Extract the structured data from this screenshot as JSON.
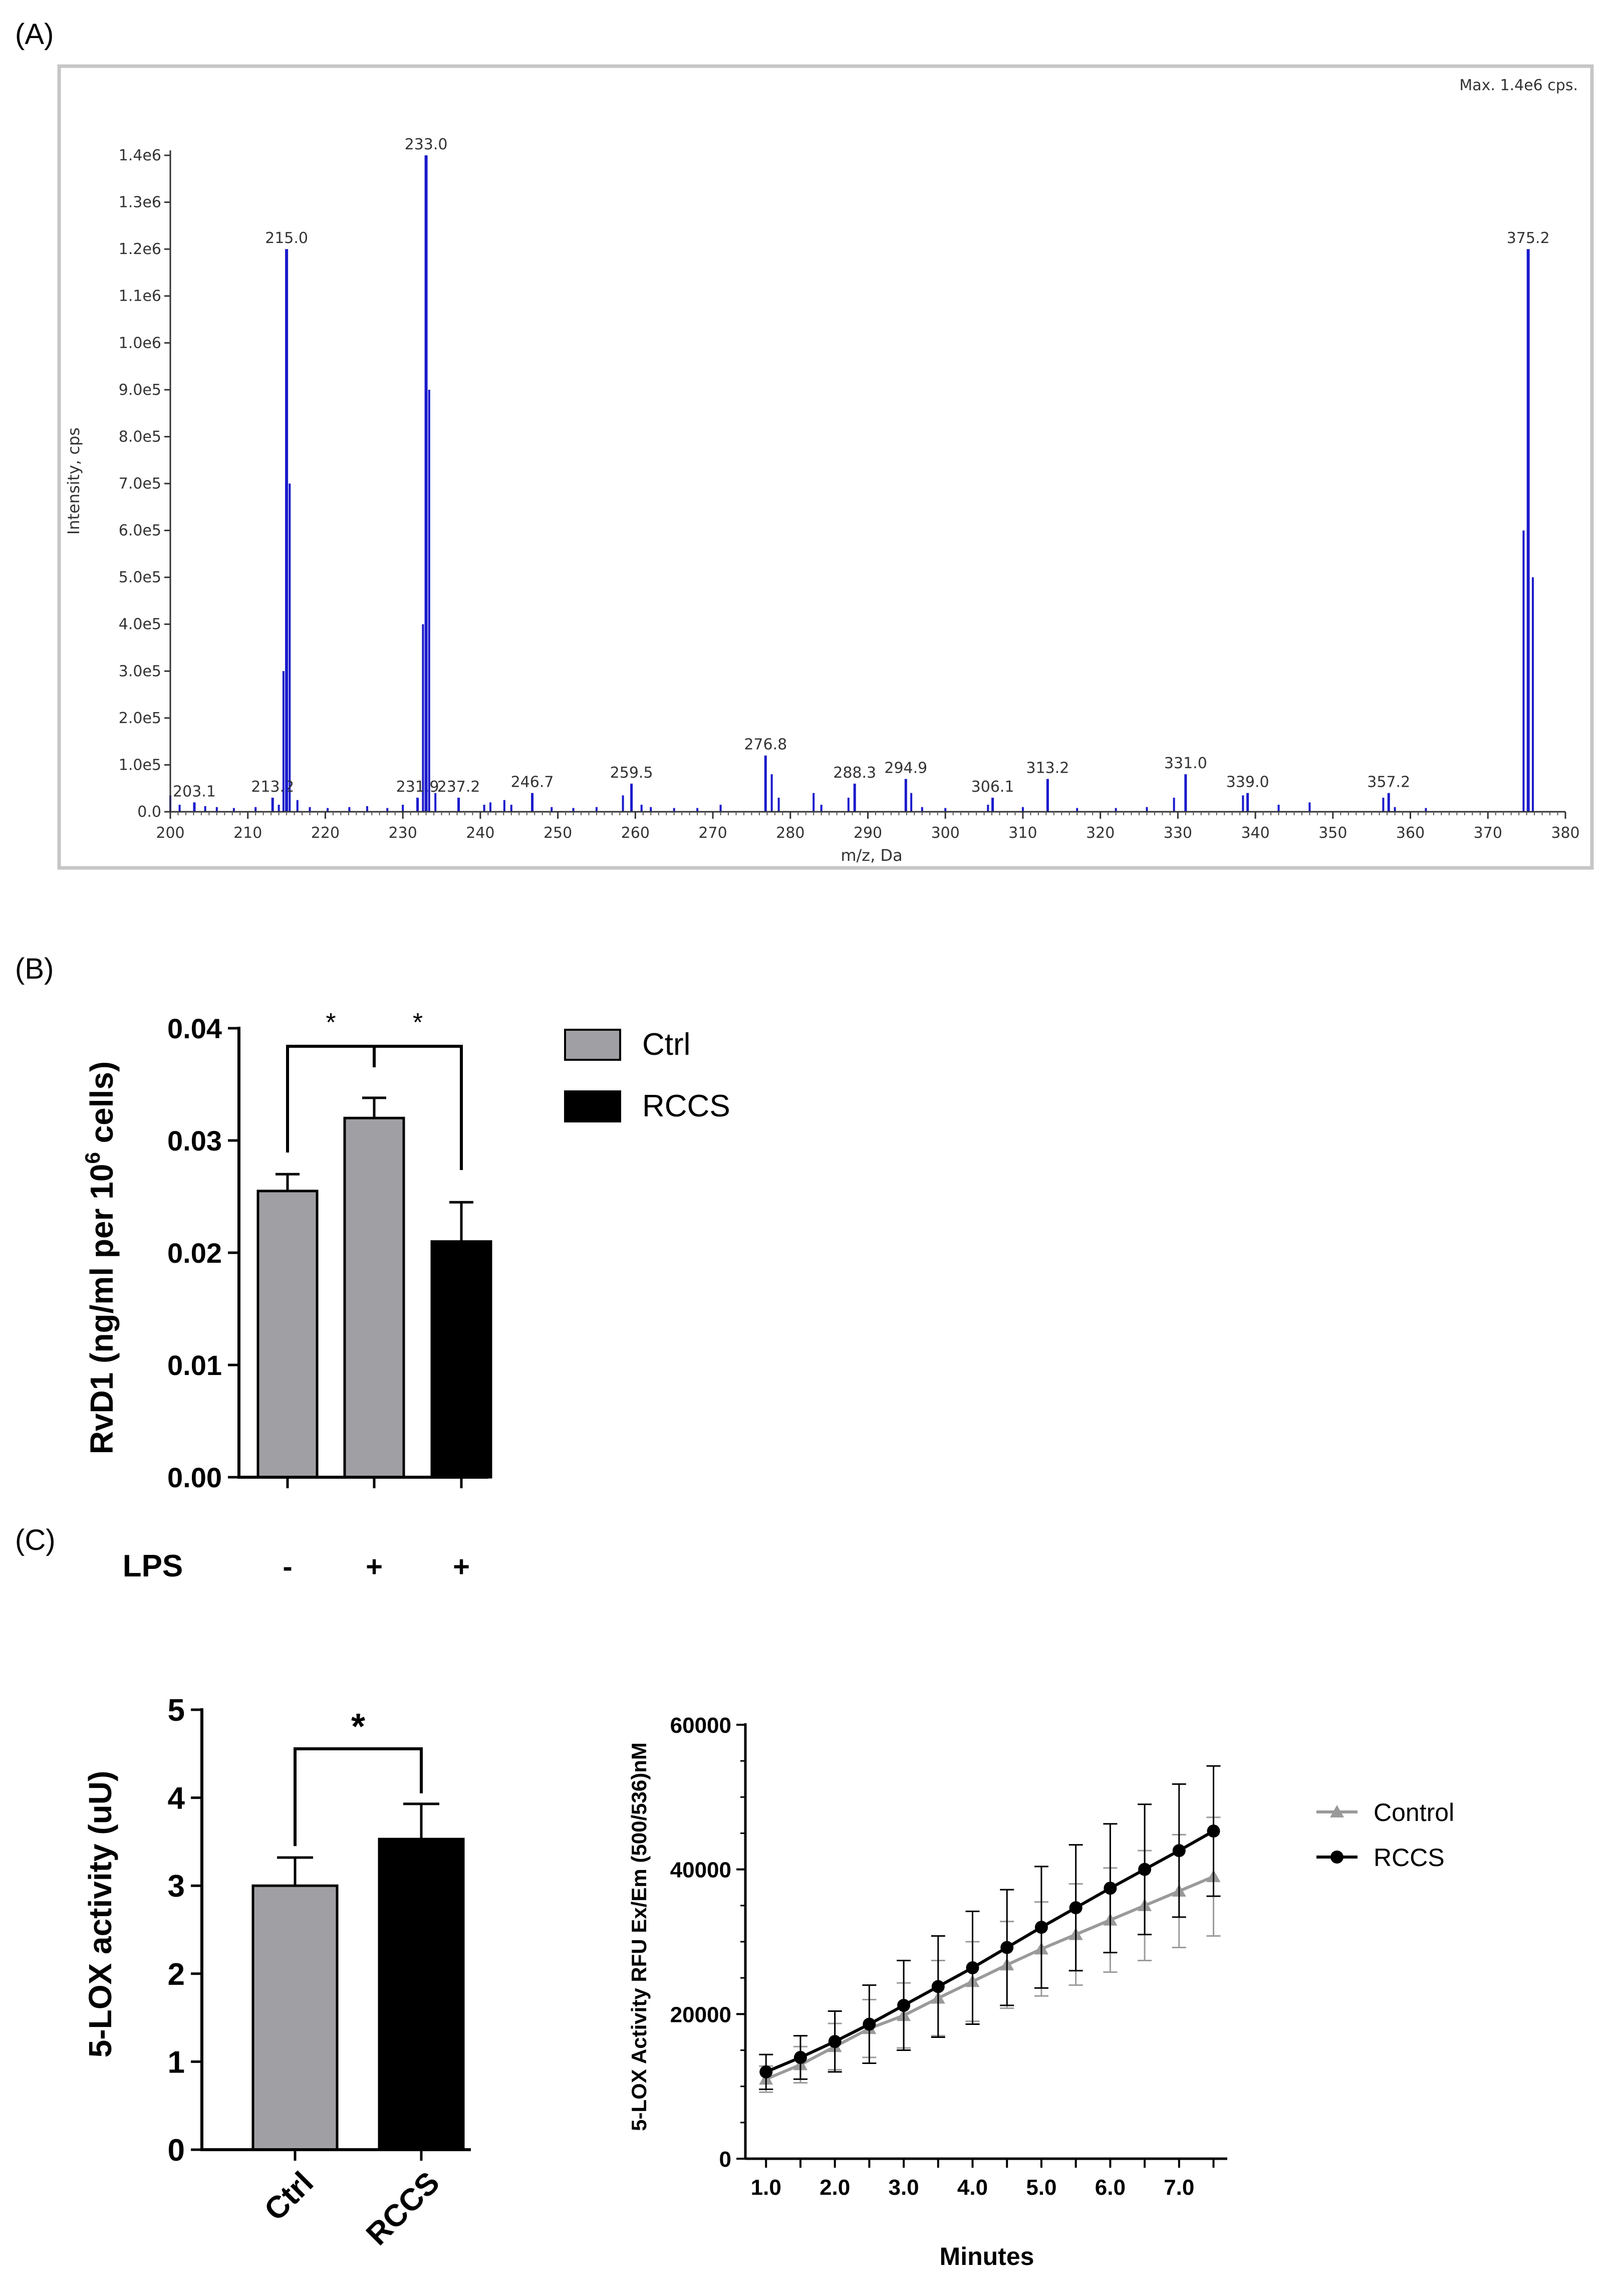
{
  "panels": {
    "a": "(A)",
    "b": "(B)",
    "c": "(C)"
  },
  "chart_data": [
    {
      "type": "line",
      "subtype": "mass-spectrum",
      "title": "",
      "max_label": "Max. 1.4e6 cps.",
      "xlabel": "m/z, Da",
      "ylabel": "Intensity, cps",
      "xlim": [
        200,
        380
      ],
      "ylim": [
        0,
        1400000
      ],
      "x_ticks": [
        "200",
        "210",
        "220",
        "230",
        "240",
        "250",
        "260",
        "270",
        "280",
        "290",
        "300",
        "310",
        "320",
        "330",
        "340",
        "350",
        "360",
        "370",
        "380"
      ],
      "y_ticks": [
        "0.0",
        "1.0e5",
        "2.0e5",
        "3.0e5",
        "4.0e5",
        "5.0e5",
        "6.0e5",
        "7.0e5",
        "8.0e5",
        "9.0e5",
        "1.0e6",
        "1.1e6",
        "1.2e6",
        "1.3e6",
        "1.4e6"
      ],
      "labeled_peaks": [
        {
          "mz": 203.1,
          "intensity": 20000,
          "label": "203.1"
        },
        {
          "mz": 213.2,
          "intensity": 30000,
          "label": "213.2"
        },
        {
          "mz": 215.0,
          "intensity": 1200000,
          "label": "215.0"
        },
        {
          "mz": 231.9,
          "intensity": 30000,
          "label": "231.9"
        },
        {
          "mz": 233.0,
          "intensity": 1400000,
          "label": "233.0"
        },
        {
          "mz": 237.2,
          "intensity": 30000,
          "label": "237.2"
        },
        {
          "mz": 246.7,
          "intensity": 40000,
          "label": "246.7"
        },
        {
          "mz": 259.5,
          "intensity": 60000,
          "label": "259.5"
        },
        {
          "mz": 276.8,
          "intensity": 120000,
          "label": "276.8"
        },
        {
          "mz": 288.3,
          "intensity": 60000,
          "label": "288.3"
        },
        {
          "mz": 294.9,
          "intensity": 70000,
          "label": "294.9"
        },
        {
          "mz": 306.1,
          "intensity": 30000,
          "label": "306.1"
        },
        {
          "mz": 313.2,
          "intensity": 70000,
          "label": "313.2"
        },
        {
          "mz": 331.0,
          "intensity": 80000,
          "label": "331.0"
        },
        {
          "mz": 339.0,
          "intensity": 40000,
          "label": "339.0"
        },
        {
          "mz": 357.2,
          "intensity": 40000,
          "label": "357.2"
        },
        {
          "mz": 375.2,
          "intensity": 1200000,
          "label": "375.2"
        }
      ],
      "minor_peaks": [
        {
          "mz": 200.0,
          "intensity": 35000
        },
        {
          "mz": 201.2,
          "intensity": 15000
        },
        {
          "mz": 204.5,
          "intensity": 12000
        },
        {
          "mz": 206.0,
          "intensity": 10000
        },
        {
          "mz": 208.2,
          "intensity": 8000
        },
        {
          "mz": 211.0,
          "intensity": 10000
        },
        {
          "mz": 214.0,
          "intensity": 15000
        },
        {
          "mz": 216.4,
          "intensity": 25000
        },
        {
          "mz": 218.0,
          "intensity": 10000
        },
        {
          "mz": 220.3,
          "intensity": 8000
        },
        {
          "mz": 223.1,
          "intensity": 10000
        },
        {
          "mz": 225.4,
          "intensity": 12000
        },
        {
          "mz": 228.0,
          "intensity": 8000
        },
        {
          "mz": 230.0,
          "intensity": 15000
        },
        {
          "mz": 234.2,
          "intensity": 40000
        },
        {
          "mz": 240.5,
          "intensity": 15000
        },
        {
          "mz": 241.3,
          "intensity": 20000
        },
        {
          "mz": 243.1,
          "intensity": 25000
        },
        {
          "mz": 244.0,
          "intensity": 15000
        },
        {
          "mz": 249.2,
          "intensity": 10000
        },
        {
          "mz": 252.0,
          "intensity": 8000
        },
        {
          "mz": 255.0,
          "intensity": 10000
        },
        {
          "mz": 258.4,
          "intensity": 35000
        },
        {
          "mz": 260.8,
          "intensity": 15000
        },
        {
          "mz": 262.0,
          "intensity": 10000
        },
        {
          "mz": 265.0,
          "intensity": 8000
        },
        {
          "mz": 268.0,
          "intensity": 8000
        },
        {
          "mz": 271.0,
          "intensity": 15000
        },
        {
          "mz": 277.6,
          "intensity": 80000
        },
        {
          "mz": 278.5,
          "intensity": 30000
        },
        {
          "mz": 283.0,
          "intensity": 40000
        },
        {
          "mz": 284.0,
          "intensity": 15000
        },
        {
          "mz": 287.5,
          "intensity": 30000
        },
        {
          "mz": 295.6,
          "intensity": 40000
        },
        {
          "mz": 297.0,
          "intensity": 10000
        },
        {
          "mz": 300.0,
          "intensity": 8000
        },
        {
          "mz": 305.5,
          "intensity": 15000
        },
        {
          "mz": 310.0,
          "intensity": 10000
        },
        {
          "mz": 317.0,
          "intensity": 8000
        },
        {
          "mz": 322.0,
          "intensity": 8000
        },
        {
          "mz": 326.0,
          "intensity": 10000
        },
        {
          "mz": 329.5,
          "intensity": 30000
        },
        {
          "mz": 338.4,
          "intensity": 35000
        },
        {
          "mz": 343.0,
          "intensity": 15000
        },
        {
          "mz": 347.0,
          "intensity": 20000
        },
        {
          "mz": 356.5,
          "intensity": 30000
        },
        {
          "mz": 358.0,
          "intensity": 10000
        },
        {
          "mz": 362.0,
          "intensity": 8000
        },
        {
          "mz": 374.6,
          "intensity": 600000
        },
        {
          "mz": 375.8,
          "intensity": 500000
        },
        {
          "mz": 214.6,
          "intensity": 300000
        },
        {
          "mz": 215.4,
          "intensity": 700000
        },
        {
          "mz": 232.6,
          "intensity": 400000
        },
        {
          "mz": 233.4,
          "intensity": 900000
        }
      ]
    },
    {
      "type": "bar",
      "title": "",
      "ylabel": "RvD1 (ng/ml per 10",
      "ylabel_sup": "6",
      "ylabel_end": " cells)",
      "ylim": [
        0,
        0.04
      ],
      "y_ticks": [
        "0.00",
        "0.01",
        "0.02",
        "0.03",
        "0.04"
      ],
      "row_label": "LPS",
      "categories": [
        "-",
        "+",
        "+"
      ],
      "values": [
        0.0255,
        0.032,
        0.021
      ],
      "errors": [
        0.0015,
        0.0018,
        0.0035
      ],
      "bar_groups": [
        "Ctrl",
        "Ctrl",
        "RCCS"
      ],
      "legend": [
        {
          "name": "Ctrl",
          "color": "#a0a0a4"
        },
        {
          "name": "RCCS",
          "color": "#000000"
        }
      ],
      "significance": [
        {
          "from": 0,
          "to": 1,
          "label": "*"
        },
        {
          "from": 1,
          "to": 2,
          "label": "*"
        }
      ]
    },
    {
      "type": "bar",
      "title": "",
      "ylabel": "5-LOX activity (uU)",
      "ylim": [
        0,
        5
      ],
      "y_ticks": [
        "0",
        "1",
        "2",
        "3",
        "4",
        "5"
      ],
      "categories": [
        "Ctrl",
        "RCCS"
      ],
      "values": [
        3.0,
        3.53
      ],
      "errors": [
        0.32,
        0.4
      ],
      "colors": [
        "#a0a0a4",
        "#000000"
      ],
      "significance": [
        {
          "from": 0,
          "to": 1,
          "label": "*"
        }
      ]
    },
    {
      "type": "line",
      "title": "",
      "xlabel": "Minutes",
      "ylabel": "5-LOX Activity RFU Ex/Em (500/536)nM",
      "xlim": [
        0.7,
        7.7
      ],
      "ylim": [
        0,
        60000
      ],
      "x_ticks": [
        "1.0",
        "2.0",
        "3.0",
        "4.0",
        "5.0",
        "6.0",
        "7.0"
      ],
      "y_ticks": [
        "0",
        "20000",
        "40000",
        "60000"
      ],
      "x": [
        1.0,
        1.5,
        2.0,
        2.5,
        3.0,
        3.5,
        4.0,
        4.5,
        5.0,
        5.5,
        6.0,
        6.5,
        7.0,
        7.5
      ],
      "series": [
        {
          "name": "Control",
          "color": "#9a9a9a",
          "marker": "triangle",
          "values": [
            11000,
            13000,
            15500,
            18000,
            19800,
            22200,
            24500,
            26800,
            29000,
            31000,
            33000,
            35000,
            37000,
            39000
          ],
          "errors": [
            1800,
            2500,
            3200,
            4000,
            4500,
            5200,
            5500,
            6000,
            6500,
            7000,
            7200,
            7600,
            7800,
            8200
          ]
        },
        {
          "name": "RCCS",
          "color": "#000000",
          "marker": "circle",
          "values": [
            12000,
            14000,
            16200,
            18600,
            21200,
            23800,
            26400,
            29200,
            32000,
            34700,
            37400,
            40000,
            42600,
            45300
          ],
          "errors": [
            2400,
            3000,
            4200,
            5400,
            6200,
            7000,
            7800,
            8000,
            8400,
            8700,
            8900,
            9000,
            9200,
            9000
          ]
        }
      ]
    }
  ]
}
